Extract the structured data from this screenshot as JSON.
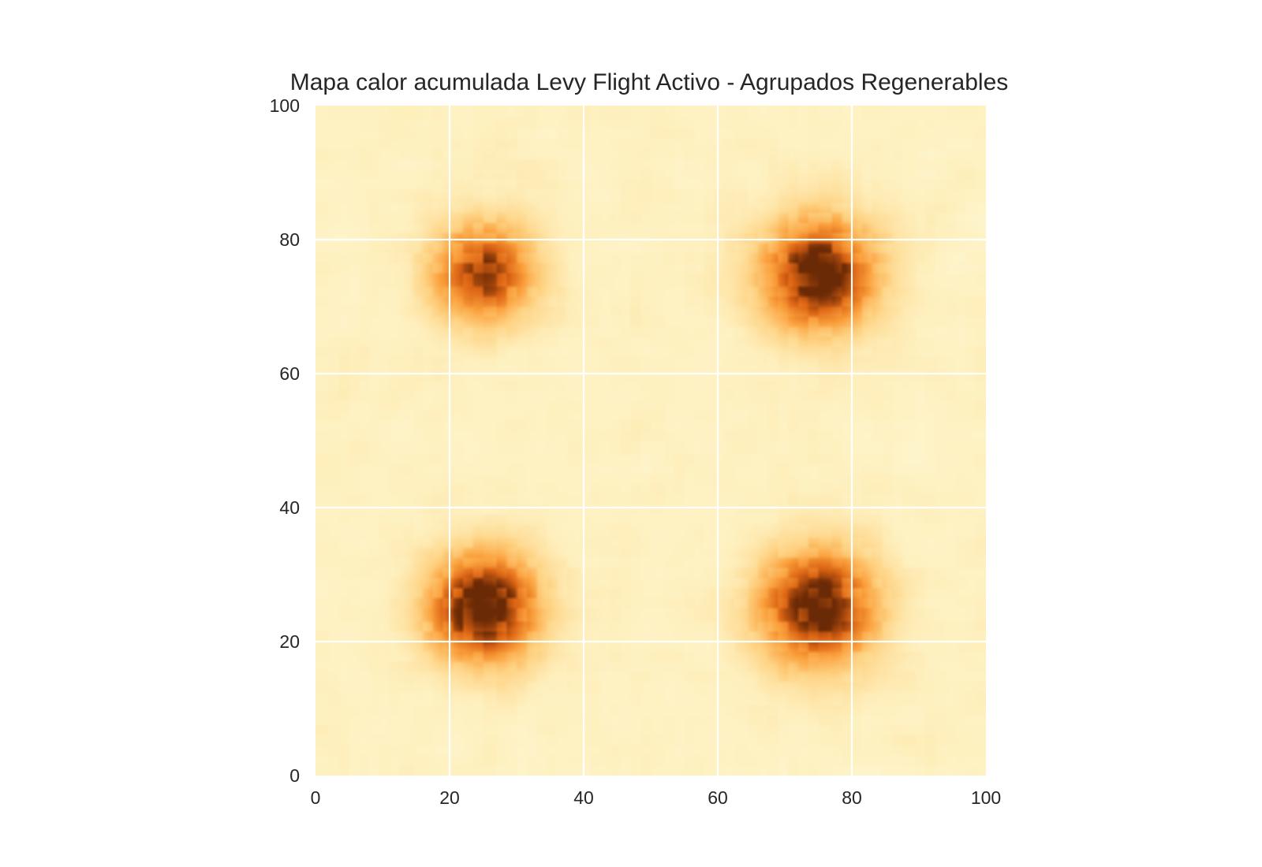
{
  "chart_data": {
    "type": "heatmap",
    "title": "Mapa calor acumulada Levy Flight Activo - Agrupados Regenerables",
    "xlabel": "",
    "ylabel": "",
    "xlim": [
      0,
      100
    ],
    "ylim": [
      0,
      100
    ],
    "x_ticks": [
      "0",
      "20",
      "40",
      "60",
      "80",
      "100"
    ],
    "y_ticks": [
      "0",
      "20",
      "40",
      "60",
      "80",
      "100"
    ],
    "grid": true,
    "colormap": "YlOrBr",
    "background_level": 0.18,
    "hotspots": [
      {
        "x": 25,
        "y": 75,
        "peak": 0.72,
        "spread": 5.5
      },
      {
        "x": 75,
        "y": 75,
        "peak": 0.9,
        "spread": 6.0
      },
      {
        "x": 25,
        "y": 25,
        "peak": 0.95,
        "spread": 5.8
      },
      {
        "x": 75,
        "y": 25,
        "peak": 0.88,
        "spread": 6.2
      }
    ]
  },
  "colors": {
    "background": "#ffffff",
    "grid": "#ffffff",
    "text": "#262626",
    "low": "#fff8d6",
    "high": "#6b2a06"
  }
}
